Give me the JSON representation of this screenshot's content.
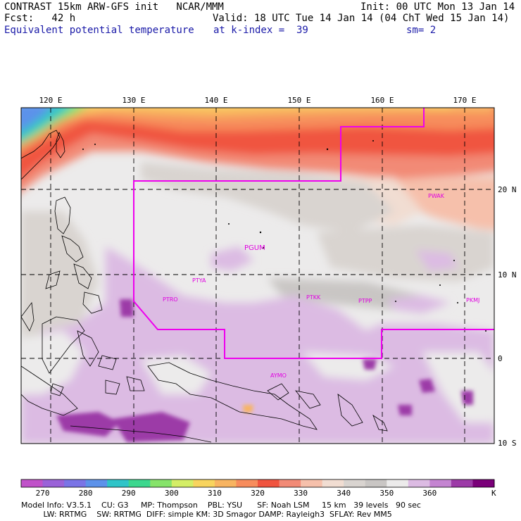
{
  "header": {
    "title": "CONTRAST 15km ARW-GFS init   NCAR/MMM",
    "fcst": "Fcst:   42 h",
    "field": "Equivalent potential temperature",
    "init": "Init: 00 UTC Mon 13 Jan 14",
    "valid": "Valid: 18 UTC Tue 14 Jan 14 (04 ChT Wed 15 Jan 14)",
    "kindex": "at k-index =  39",
    "smooth": "sm= 2"
  },
  "axes": {
    "lon_labels": [
      "120 E",
      "130 E",
      "140 E",
      "150 E",
      "160 E",
      "170 E"
    ],
    "lat_labels": [
      "20 N",
      "10 N",
      "0",
      "10 S"
    ]
  },
  "stations": [
    "PWAK",
    "PGUM",
    "PTYA",
    "PTRO",
    "PTKK",
    "PTPP",
    "PKMJ",
    "AYMO"
  ],
  "colorbar": {
    "unit": "K",
    "labels": [
      "270",
      "280",
      "290",
      "300",
      "310",
      "320",
      "330",
      "340",
      "350",
      "360"
    ],
    "colors": [
      "#c052c9",
      "#9a62d8",
      "#7a74e6",
      "#5c92ea",
      "#2fc4c8",
      "#3cd78e",
      "#86e36a",
      "#d4ee66",
      "#f8d45e",
      "#f8b461",
      "#f78c5c",
      "#f0543f",
      "#f28a76",
      "#f6c0ab",
      "#f1ddd2",
      "#d9d4d0",
      "#c9c6c4",
      "#ecebeb",
      "#dcbbe3",
      "#c484d1",
      "#9c3aa7",
      "#7a0079"
    ]
  },
  "footer": {
    "line1": "Model Info: V3.5.1    CU: G3     MP: Thompson    PBL: YSU      SF: Noah LSM     15 km   39 levels   90 sec",
    "line2": "         LW: RRTMG    SW: RRTMG  DIFF: simple KM: 3D Smagor DAMP: Rayleigh3  SFLAY: Rev MM5"
  }
}
